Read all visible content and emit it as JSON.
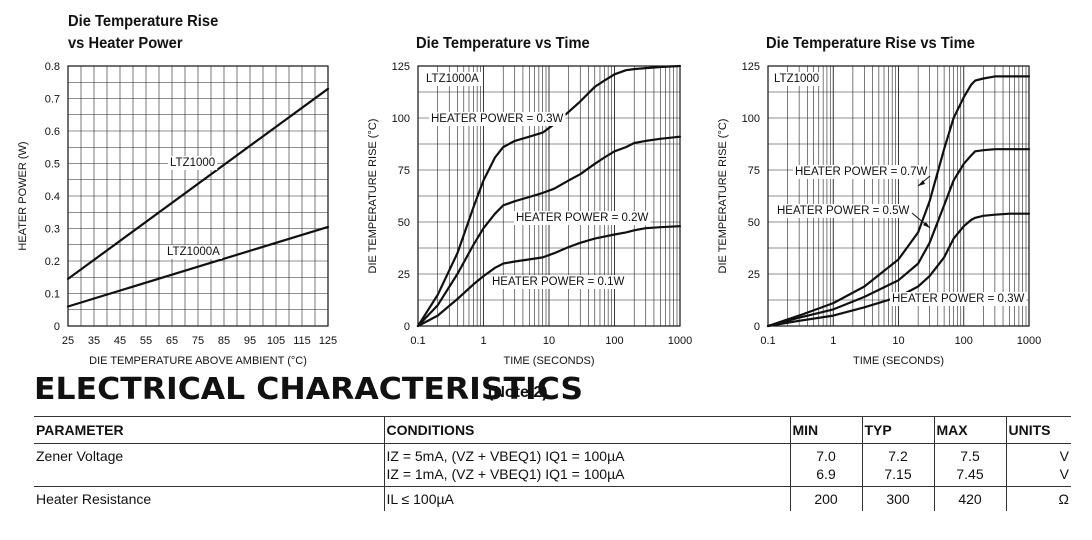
{
  "charts_text": {
    "c1": {
      "title_line1": "Die Temperature Rise",
      "title_line2": "vs Heater Power"
    },
    "c2": {
      "title": "Die Temperature vs Time"
    },
    "c3": {
      "title": "Die Temperature Rise vs Time"
    }
  },
  "chart_data": [
    {
      "type": "line",
      "title": "Die Temperature Rise vs Heater Power",
      "xlabel": "DIE TEMPERATURE ABOVE AMBIENT (°C)",
      "ylabel": "HEATER POWER (W)",
      "xlim": [
        25,
        125
      ],
      "ylim": [
        0,
        0.8
      ],
      "x_ticks": [
        "25",
        "35",
        "45",
        "55",
        "65",
        "75",
        "85",
        "95",
        "105",
        "115",
        "125"
      ],
      "y_ticks": [
        "0",
        "0.1",
        "0.2",
        "0.3",
        "0.4",
        "0.5",
        "0.6",
        "0.7",
        "0.8"
      ],
      "grid": true,
      "series": [
        {
          "name": "LTZ1000",
          "x": [
            25,
            125
          ],
          "y": [
            0.145,
            0.73
          ]
        },
        {
          "name": "LTZ1000A",
          "x": [
            25,
            125
          ],
          "y": [
            0.06,
            0.305
          ]
        }
      ]
    },
    {
      "type": "line",
      "title": "Die Temperature vs Time",
      "xlabel": "TIME (SECONDS)",
      "ylabel": "DIE TEMPERATURE RISE (°C)",
      "x_scale": "log",
      "xlim": [
        0.1,
        1000
      ],
      "ylim": [
        0,
        125
      ],
      "x_ticks": [
        "0.1",
        "1",
        "10",
        "100",
        "1000"
      ],
      "y_ticks": [
        "0",
        "25",
        "50",
        "75",
        "100",
        "125"
      ],
      "annotation": "LTZ1000A",
      "grid": true,
      "series": [
        {
          "name": "HEATER POWER = 0.3W",
          "x": [
            0.1,
            0.2,
            0.4,
            0.7,
            1,
            1.5,
            2,
            3,
            5,
            8,
            12,
            20,
            30,
            50,
            70,
            100,
            150,
            200,
            300,
            500,
            1000
          ],
          "y": [
            0,
            15,
            35,
            57,
            70,
            81,
            86,
            89,
            91,
            93,
            97,
            103,
            108,
            115,
            118,
            121,
            123,
            123.5,
            124,
            124.5,
            125
          ]
        },
        {
          "name": "HEATER POWER = 0.2W",
          "x": [
            0.1,
            0.2,
            0.4,
            0.7,
            1,
            1.5,
            2,
            3,
            5,
            8,
            12,
            20,
            30,
            50,
            70,
            100,
            150,
            200,
            300,
            500,
            1000
          ],
          "y": [
            0,
            10,
            25,
            39,
            47,
            54,
            58,
            60,
            62,
            64,
            66,
            70,
            73,
            78,
            81,
            84,
            86,
            88,
            89,
            90,
            91
          ]
        },
        {
          "name": "HEATER POWER = 0.1W",
          "x": [
            0.1,
            0.2,
            0.4,
            0.7,
            1,
            1.5,
            2,
            3,
            5,
            8,
            12,
            20,
            30,
            50,
            70,
            100,
            150,
            200,
            300,
            500,
            1000
          ],
          "y": [
            0,
            5,
            13,
            20,
            24,
            28,
            30,
            31,
            32,
            33,
            35,
            38,
            40,
            42,
            43,
            44,
            45,
            46,
            47,
            47.5,
            48
          ]
        }
      ]
    },
    {
      "type": "line",
      "title": "Die Temperature Rise vs Time",
      "xlabel": "TIME (SECONDS)",
      "ylabel": "DIE TEMPERATURE RISE (°C)",
      "x_scale": "log",
      "xlim": [
        0.1,
        1000
      ],
      "ylim": [
        0,
        125
      ],
      "x_ticks": [
        "0.1",
        "1",
        "10",
        "100",
        "1000"
      ],
      "y_ticks": [
        "0",
        "25",
        "50",
        "75",
        "100",
        "125"
      ],
      "annotation": "LTZ1000",
      "grid": true,
      "series": [
        {
          "name": "HEATER POWER = 0.7W",
          "x": [
            0.1,
            0.3,
            1,
            3,
            10,
            20,
            30,
            50,
            70,
            100,
            130,
            150,
            200,
            300,
            500,
            1000
          ],
          "y": [
            0,
            5,
            11,
            19,
            32,
            45,
            60,
            85,
            100,
            110,
            116,
            118,
            119,
            120,
            120,
            120
          ]
        },
        {
          "name": "HEATER POWER = 0.5W",
          "x": [
            0.1,
            0.3,
            1,
            3,
            10,
            20,
            30,
            50,
            70,
            100,
            130,
            150,
            200,
            300,
            500,
            1000
          ],
          "y": [
            0,
            4,
            8,
            14,
            22,
            30,
            40,
            58,
            70,
            78,
            82,
            84,
            84.5,
            85,
            85,
            85
          ]
        },
        {
          "name": "HEATER POWER = 0.3W",
          "x": [
            0.1,
            0.3,
            1,
            3,
            10,
            20,
            30,
            50,
            70,
            100,
            130,
            150,
            200,
            300,
            500,
            1000
          ],
          "y": [
            0,
            2.5,
            5,
            9,
            14,
            19,
            24,
            33,
            42,
            48,
            51,
            52,
            53,
            53.5,
            54,
            54
          ]
        }
      ]
    }
  ],
  "section": {
    "title": "ELECTRICAL CHARACTERISTICS",
    "note": "(Note 2)"
  },
  "table": {
    "headers": {
      "parameter": "PARAMETER",
      "conditions": "CONDITIONS",
      "min": "MIN",
      "typ": "TYP",
      "max": "MAX",
      "units": "UNITS"
    },
    "rows": [
      {
        "parameter": "Zener Voltage",
        "conditions": [
          "IZ = 5mA, (VZ + VBEQ1) IQ1 = 100µA",
          "IZ = 1mA, (VZ + VBEQ1) IQ1 = 100µA"
        ],
        "min": [
          "7.0",
          "6.9"
        ],
        "typ": [
          "7.2",
          "7.15"
        ],
        "max": [
          "7.5",
          "7.45"
        ],
        "units": [
          "V",
          "V"
        ]
      },
      {
        "parameter": "Heater Resistance",
        "conditions": [
          "IL ≤ 100µA"
        ],
        "min": [
          "200"
        ],
        "typ": [
          "300"
        ],
        "max": [
          "420"
        ],
        "units": [
          "Ω"
        ]
      }
    ]
  }
}
